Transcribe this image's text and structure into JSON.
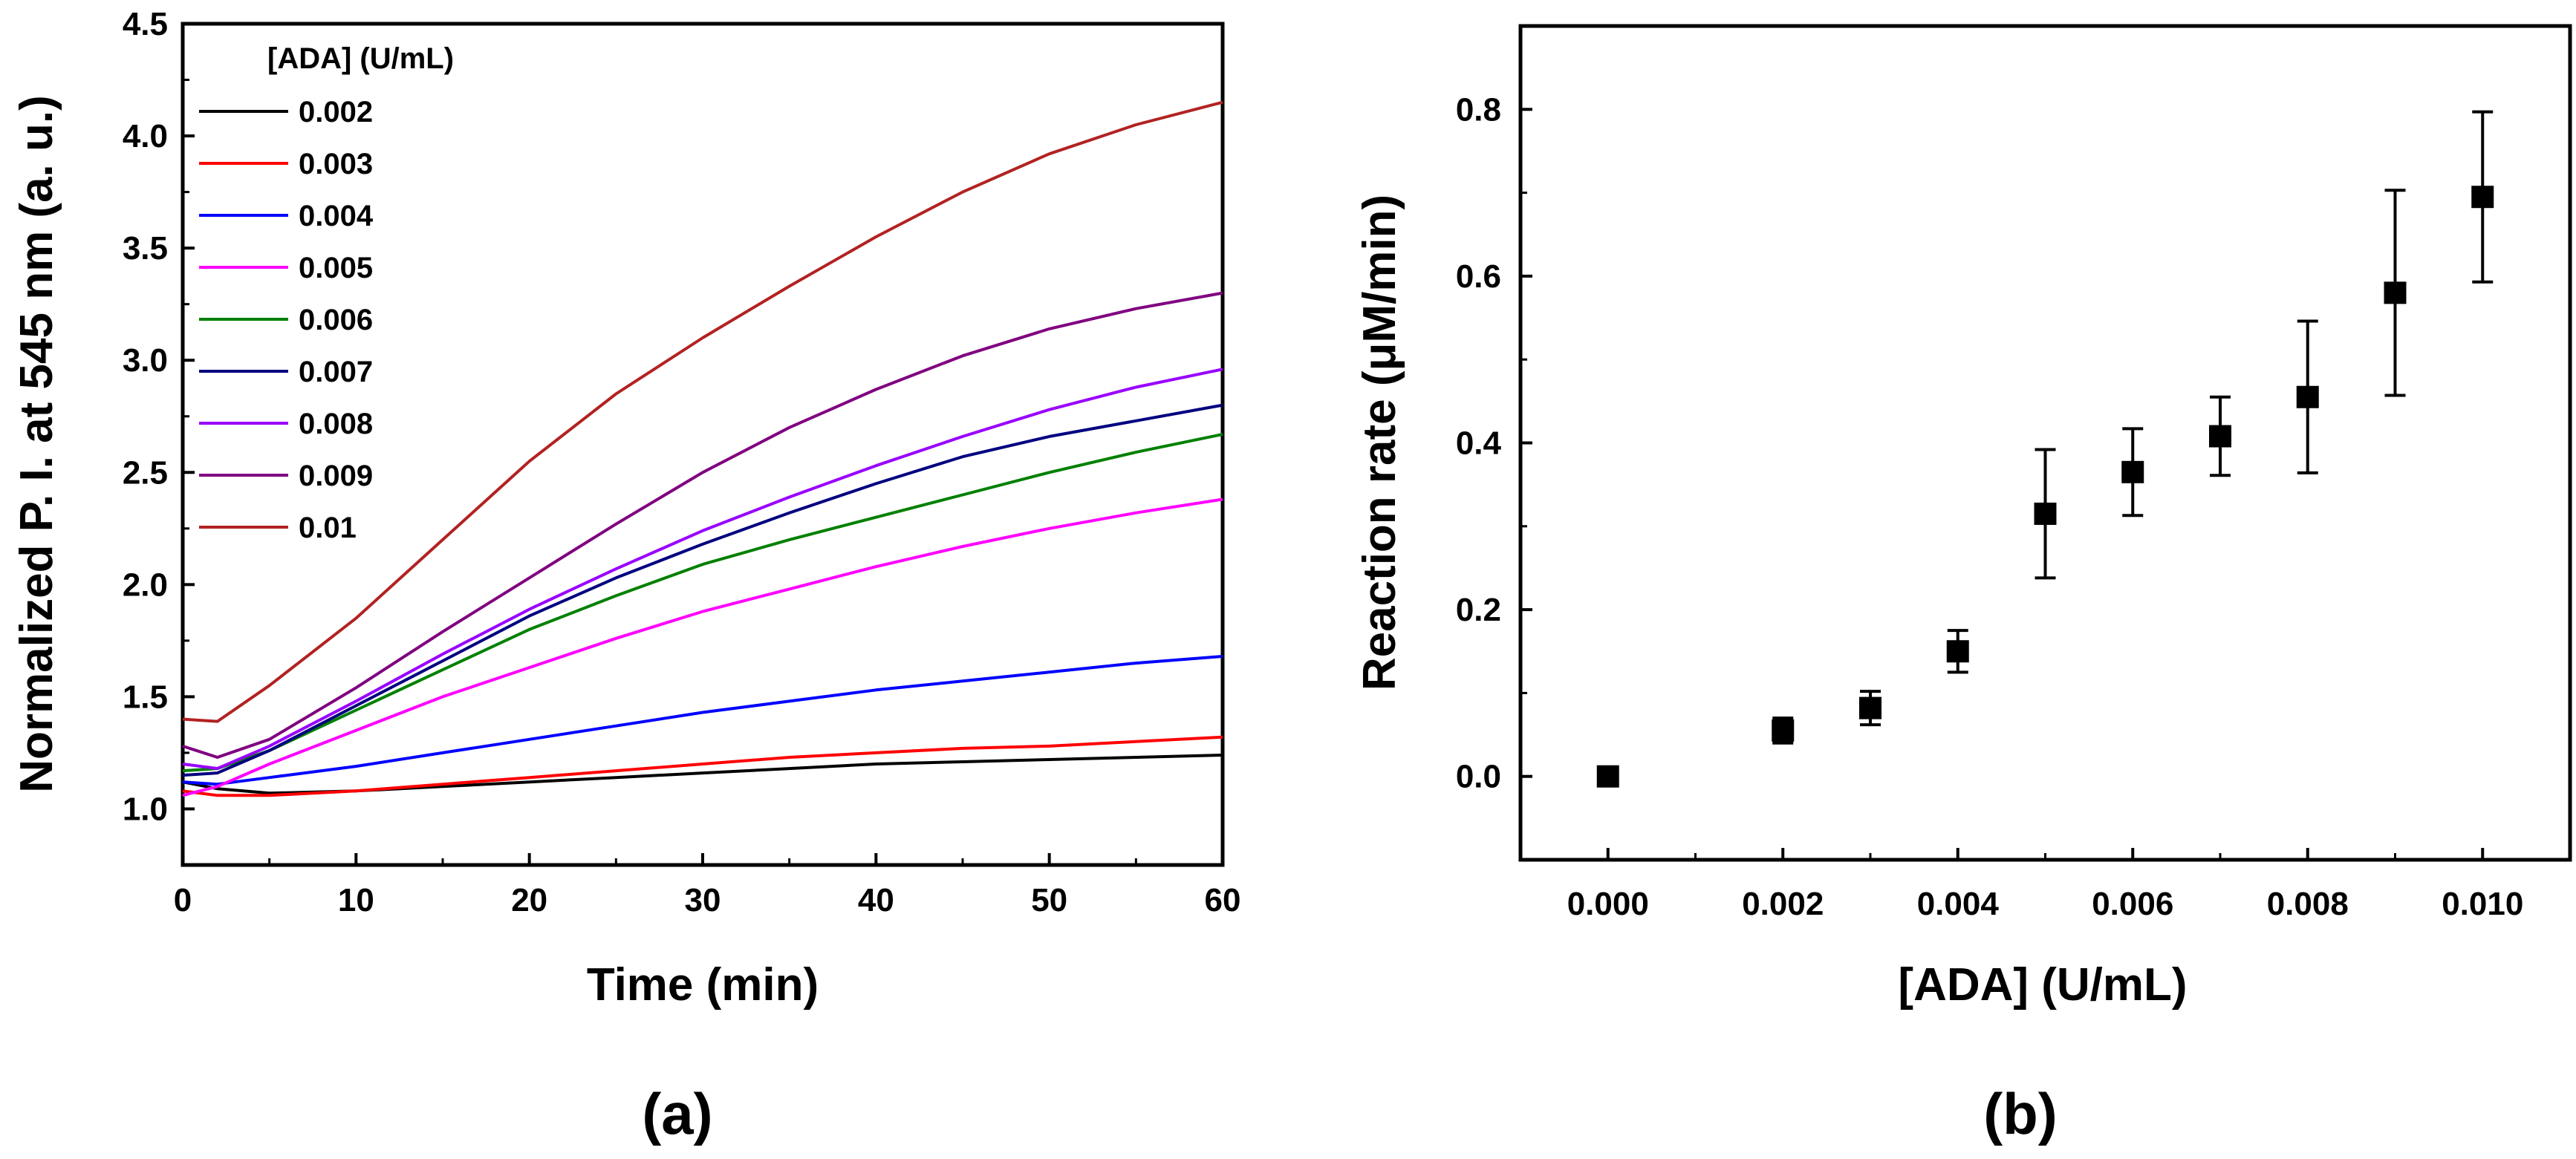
{
  "chart_data": [
    {
      "type": "line",
      "panel_label": "(a)",
      "xlabel": "Time (min)",
      "ylabel": "Normalized P. I. at 545 nm (a. u.)",
      "xlim": [
        0,
        60
      ],
      "ylim": [
        0.75,
        4.5
      ],
      "xticks": [
        0,
        10,
        20,
        30,
        40,
        50,
        60
      ],
      "yticks": [
        1.0,
        1.5,
        2.0,
        2.5,
        3.0,
        3.5,
        4.0,
        4.5
      ],
      "legend_title": "[ADA] (U/mL)",
      "legend_position": "top-left",
      "series": [
        {
          "name": "0.002",
          "color": "#000000",
          "x": [
            0,
            2,
            5,
            10,
            15,
            20,
            25,
            30,
            35,
            40,
            45,
            50,
            55,
            60
          ],
          "y": [
            1.12,
            1.09,
            1.07,
            1.08,
            1.1,
            1.12,
            1.14,
            1.16,
            1.18,
            1.2,
            1.21,
            1.22,
            1.23,
            1.24
          ]
        },
        {
          "name": "0.003",
          "color": "#ff0000",
          "x": [
            0,
            2,
            5,
            10,
            15,
            20,
            25,
            30,
            35,
            40,
            45,
            50,
            55,
            60
          ],
          "y": [
            1.08,
            1.06,
            1.06,
            1.08,
            1.11,
            1.14,
            1.17,
            1.2,
            1.23,
            1.25,
            1.27,
            1.28,
            1.3,
            1.32
          ]
        },
        {
          "name": "0.004",
          "color": "#0000ff",
          "x": [
            0,
            2,
            5,
            10,
            15,
            20,
            25,
            30,
            35,
            40,
            45,
            50,
            55,
            60
          ],
          "y": [
            1.12,
            1.11,
            1.14,
            1.19,
            1.25,
            1.31,
            1.37,
            1.43,
            1.48,
            1.53,
            1.57,
            1.61,
            1.65,
            1.68
          ]
        },
        {
          "name": "0.005",
          "color": "#ff00ff",
          "x": [
            0,
            2,
            5,
            10,
            15,
            20,
            25,
            30,
            35,
            40,
            45,
            50,
            55,
            60
          ],
          "y": [
            1.06,
            1.1,
            1.2,
            1.35,
            1.5,
            1.63,
            1.76,
            1.88,
            1.98,
            2.08,
            2.17,
            2.25,
            2.32,
            2.38
          ]
        },
        {
          "name": "0.006",
          "color": "#008000",
          "x": [
            0,
            2,
            5,
            10,
            15,
            20,
            25,
            30,
            35,
            40,
            45,
            50,
            55,
            60
          ],
          "y": [
            1.17,
            1.18,
            1.26,
            1.44,
            1.62,
            1.8,
            1.95,
            2.09,
            2.2,
            2.3,
            2.4,
            2.5,
            2.59,
            2.67
          ]
        },
        {
          "name": "0.007",
          "color": "#000080",
          "x": [
            0,
            2,
            5,
            10,
            15,
            20,
            25,
            30,
            35,
            40,
            45,
            50,
            55,
            60
          ],
          "y": [
            1.15,
            1.16,
            1.26,
            1.46,
            1.66,
            1.86,
            2.03,
            2.18,
            2.32,
            2.45,
            2.57,
            2.66,
            2.73,
            2.8
          ]
        },
        {
          "name": "0.008",
          "color": "#9900ff",
          "x": [
            0,
            2,
            5,
            10,
            15,
            20,
            25,
            30,
            35,
            40,
            45,
            50,
            55,
            60
          ],
          "y": [
            1.2,
            1.18,
            1.28,
            1.48,
            1.69,
            1.89,
            2.07,
            2.24,
            2.39,
            2.53,
            2.66,
            2.78,
            2.88,
            2.96
          ]
        },
        {
          "name": "0.009",
          "color": "#800080",
          "x": [
            0,
            2,
            5,
            10,
            15,
            20,
            25,
            30,
            35,
            40,
            45,
            50,
            55,
            60
          ],
          "y": [
            1.28,
            1.23,
            1.31,
            1.54,
            1.79,
            2.03,
            2.27,
            2.5,
            2.7,
            2.87,
            3.02,
            3.14,
            3.23,
            3.3
          ]
        },
        {
          "name": "0.01",
          "color": "#b22222",
          "x": [
            0,
            2,
            5,
            10,
            15,
            20,
            25,
            30,
            35,
            40,
            45,
            50,
            55,
            60
          ],
          "y": [
            1.4,
            1.39,
            1.55,
            1.85,
            2.2,
            2.55,
            2.85,
            3.1,
            3.33,
            3.55,
            3.75,
            3.92,
            4.05,
            4.15
          ]
        }
      ]
    },
    {
      "type": "scatter",
      "panel_label": "(b)",
      "xlabel": "[ADA] (U/mL)",
      "ylabel": "Reaction rate (μM/min)",
      "xlim": [
        -0.001,
        0.011
      ],
      "ylim": [
        -0.1,
        0.9
      ],
      "xticks": [
        0.0,
        0.002,
        0.004,
        0.006,
        0.008,
        0.01
      ],
      "xtick_labels": [
        "0.000",
        "0.002",
        "0.004",
        "0.006",
        "0.008",
        "0.010"
      ],
      "yticks": [
        0.0,
        0.2,
        0.4,
        0.6,
        0.8
      ],
      "ytick_labels": [
        "0.0",
        "0.2",
        "0.4",
        "0.6",
        "0.8"
      ],
      "x": [
        0.0,
        0.002,
        0.003,
        0.004,
        0.005,
        0.006,
        0.007,
        0.008,
        0.009,
        0.01
      ],
      "y": [
        0.0,
        0.055,
        0.082,
        0.15,
        0.315,
        0.365,
        0.408,
        0.455,
        0.58,
        0.695
      ],
      "error": [
        0.0,
        0.015,
        0.02,
        0.025,
        0.077,
        0.052,
        0.047,
        0.091,
        0.123,
        0.102
      ]
    }
  ]
}
